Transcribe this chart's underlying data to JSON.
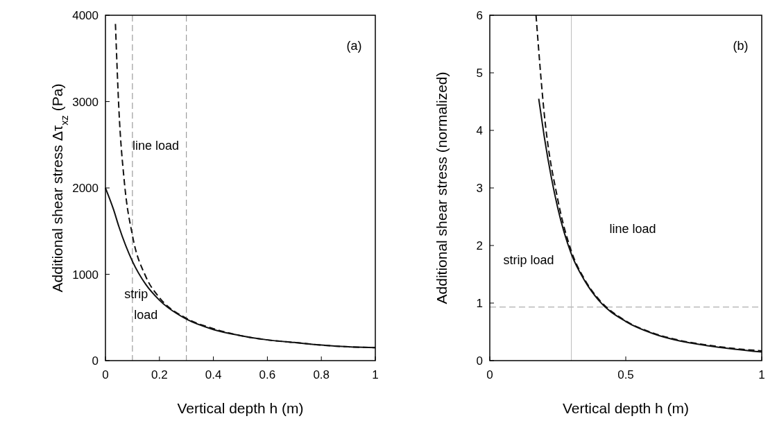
{
  "chart_data": [
    {
      "type": "line",
      "xlabel": "Vertical depth  h  (m)",
      "ylabel": "Additional shear stress  Δτ$_{xz}$  (Pa)",
      "xlim": [
        0,
        1
      ],
      "ylim": [
        0,
        4000
      ],
      "xticks": [
        0,
        0.2,
        0.4,
        0.6,
        0.8,
        1
      ],
      "yticks": [
        0,
        1000,
        2000,
        3000,
        4000
      ],
      "grid": false,
      "series": [
        {
          "color": "#111111",
          "line_style": "dashed",
          "x": [
            0.037,
            0.05,
            0.07,
            0.1,
            0.15,
            0.2,
            0.3,
            0.4,
            0.5,
            0.6,
            0.7,
            0.8,
            0.9,
            1
          ],
          "values": [
            3900,
            2900,
            2070,
            1450,
            970,
            730,
            490,
            370,
            290,
            240,
            210,
            180,
            160,
            150
          ]
        },
        {
          "color": "#111111",
          "line_style": "solid",
          "x": [
            0,
            0.03,
            0.05,
            0.1,
            0.15,
            0.2,
            0.3,
            0.4,
            0.5,
            0.6,
            0.7,
            0.8,
            0.9,
            1
          ],
          "values": [
            2000,
            1750,
            1550,
            1150,
            880,
            700,
            480,
            360,
            290,
            240,
            210,
            180,
            160,
            150
          ]
        }
      ],
      "ref_lines": [
        {
          "axis": "x",
          "value": 0.1,
          "color": "#888888",
          "line_style": "dashed"
        },
        {
          "axis": "x",
          "value": 0.3,
          "color": "#888888",
          "line_style": "dashed"
        }
      ],
      "annotations": [
        "line load",
        "strip load",
        "(a)"
      ]
    },
    {
      "type": "line",
      "xlabel": "Vertical depth  h  (m)",
      "ylabel": "Additional shear stress (normalized)",
      "xlim": [
        0,
        1
      ],
      "ylim": [
        0,
        6
      ],
      "xticks": [
        0,
        0.5,
        1
      ],
      "yticks": [
        0,
        1,
        2,
        3,
        4,
        5,
        6
      ],
      "grid": false,
      "series": [
        {
          "color": "#111111",
          "line_style": "dashed",
          "x": [
            0.17,
            0.2,
            0.25,
            0.3,
            0.35,
            0.4,
            0.5,
            0.6,
            0.7,
            0.8,
            0.9,
            1
          ],
          "values": [
            6.0,
            4.3,
            2.8,
            1.9,
            1.4,
            1.07,
            0.69,
            0.48,
            0.35,
            0.27,
            0.21,
            0.17
          ]
        },
        {
          "color": "#111111",
          "line_style": "solid",
          "x": [
            0.18,
            0.2,
            0.25,
            0.3,
            0.35,
            0.4,
            0.5,
            0.6,
            0.7,
            0.8,
            0.9,
            1
          ],
          "values": [
            4.55,
            3.9,
            2.65,
            1.85,
            1.38,
            1.05,
            0.68,
            0.47,
            0.34,
            0.26,
            0.2,
            0.15
          ]
        }
      ],
      "ref_lines": [
        {
          "axis": "y",
          "value": 0.93,
          "color": "#999999",
          "line_style": "dashed"
        },
        {
          "axis": "x",
          "value": 0.3,
          "color": "#bbbbbb",
          "line_style": "solid"
        }
      ],
      "annotations": [
        "line load",
        "strip load",
        "(b)"
      ]
    }
  ]
}
